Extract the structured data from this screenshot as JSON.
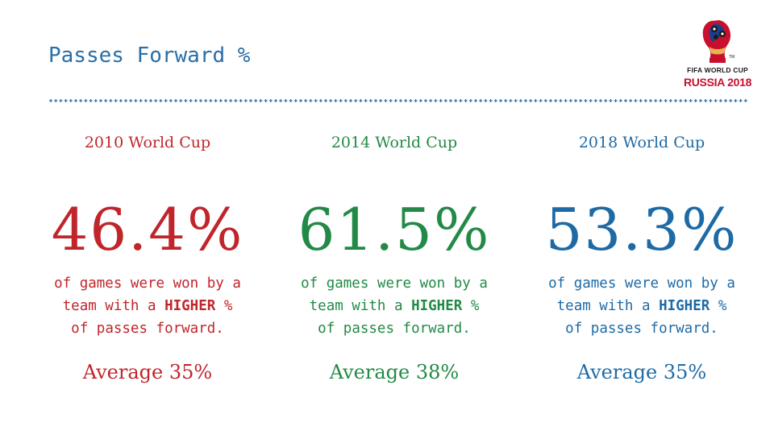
{
  "title": "Passes Forward %",
  "logo": {
    "line1": "FIFA WORLD CUP",
    "line2": "RUSSIA 2018",
    "icon": "fifa-world-cup-trophy-emblem"
  },
  "colors": {
    "title": "#2a6ea6",
    "col2010": "#c0252b",
    "col2014": "#228a46",
    "col2018": "#1e6aa5",
    "divider": "#2a6ea6"
  },
  "columns": [
    {
      "heading": "2010 World Cup",
      "value": "46.4%",
      "desc_line1": "of games were won by a",
      "desc_line2_pre": "team with a ",
      "desc_line2_bold": "HIGHER",
      "desc_line2_post": " %",
      "desc_line3": "of passes forward.",
      "average": "Average 35%"
    },
    {
      "heading": "2014 World Cup",
      "value": "61.5%",
      "desc_line1": "of games were won by a",
      "desc_line2_pre": "team with a ",
      "desc_line2_bold": "HIGHER",
      "desc_line2_post": " %",
      "desc_line3": "of passes forward.",
      "average": "Average 38%"
    },
    {
      "heading": "2018 World Cup",
      "value": "53.3%",
      "desc_line1": "of games were won by a",
      "desc_line2_pre": "team with a ",
      "desc_line2_bold": "HIGHER",
      "desc_line2_post": " %",
      "desc_line3": "of passes forward.",
      "average": "Average 35%"
    }
  ]
}
